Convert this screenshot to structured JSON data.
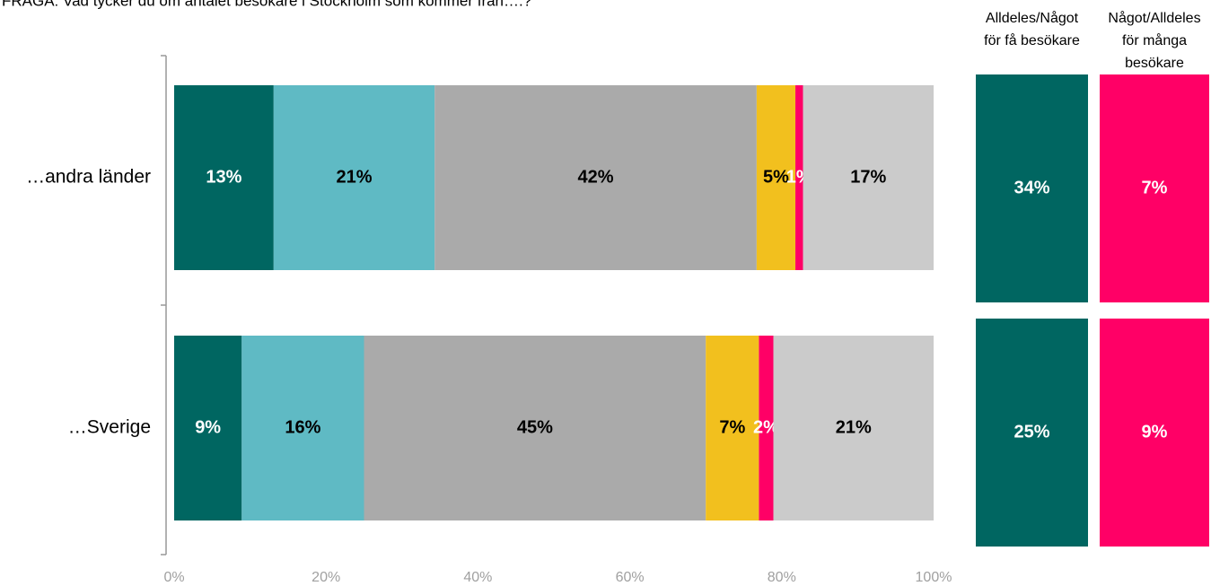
{
  "chart_data": {
    "type": "stacked-bar-horizontal",
    "title": "FRÅGA: Vad tycker du om antalet besökare i Stockholm som kommer från….?",
    "categories": [
      "…andra länder",
      "…Sverige"
    ],
    "series": [
      {
        "color": "#006661",
        "label_color": "#ffffff",
        "values": [
          13.1,
          8.9
        ],
        "value_labels": [
          "13%",
          "9%"
        ]
      },
      {
        "color": "#5fbac4",
        "label_color": "#000000",
        "values": [
          21.2,
          16.1
        ],
        "value_labels": [
          "21%",
          "16%"
        ]
      },
      {
        "color": "#aaaaaa",
        "label_color": "#000000",
        "values": [
          42.4,
          45.0
        ],
        "value_labels": [
          "42%",
          "45%"
        ]
      },
      {
        "color": "#f2c01e",
        "label_color": "#000000",
        "values": [
          5.1,
          7.0
        ],
        "value_labels": [
          "5%",
          "7%"
        ]
      },
      {
        "color": "#ff0066",
        "label_color": "#ffffff",
        "values": [
          1.0,
          1.9
        ],
        "value_labels": [
          "1%",
          "2%"
        ]
      },
      {
        "color": "#cbcbcb",
        "label_color": "#000000",
        "values": [
          17.2,
          21.1
        ],
        "value_labels": [
          "17%",
          "21%"
        ]
      }
    ],
    "xlim": [
      0,
      100
    ],
    "xticks": [
      {
        "value": 0,
        "label": "0%"
      },
      {
        "value": 20,
        "label": "20%"
      },
      {
        "value": 40,
        "label": "40%"
      },
      {
        "value": 60,
        "label": "60%"
      },
      {
        "value": 80,
        "label": "80%"
      },
      {
        "value": 100,
        "label": "100%"
      }
    ],
    "summary": [
      {
        "label": [
          "Alldeles/Något",
          "för få besökare"
        ],
        "color": "#006661",
        "values": [
          34,
          25
        ],
        "value_labels": [
          "34%",
          "25%"
        ]
      },
      {
        "label": [
          "Något/Alldeles",
          "för många",
          "besökare"
        ],
        "color": "#ff0066",
        "values": [
          7,
          9
        ],
        "value_labels": [
          "7%",
          "9%"
        ]
      }
    ]
  }
}
